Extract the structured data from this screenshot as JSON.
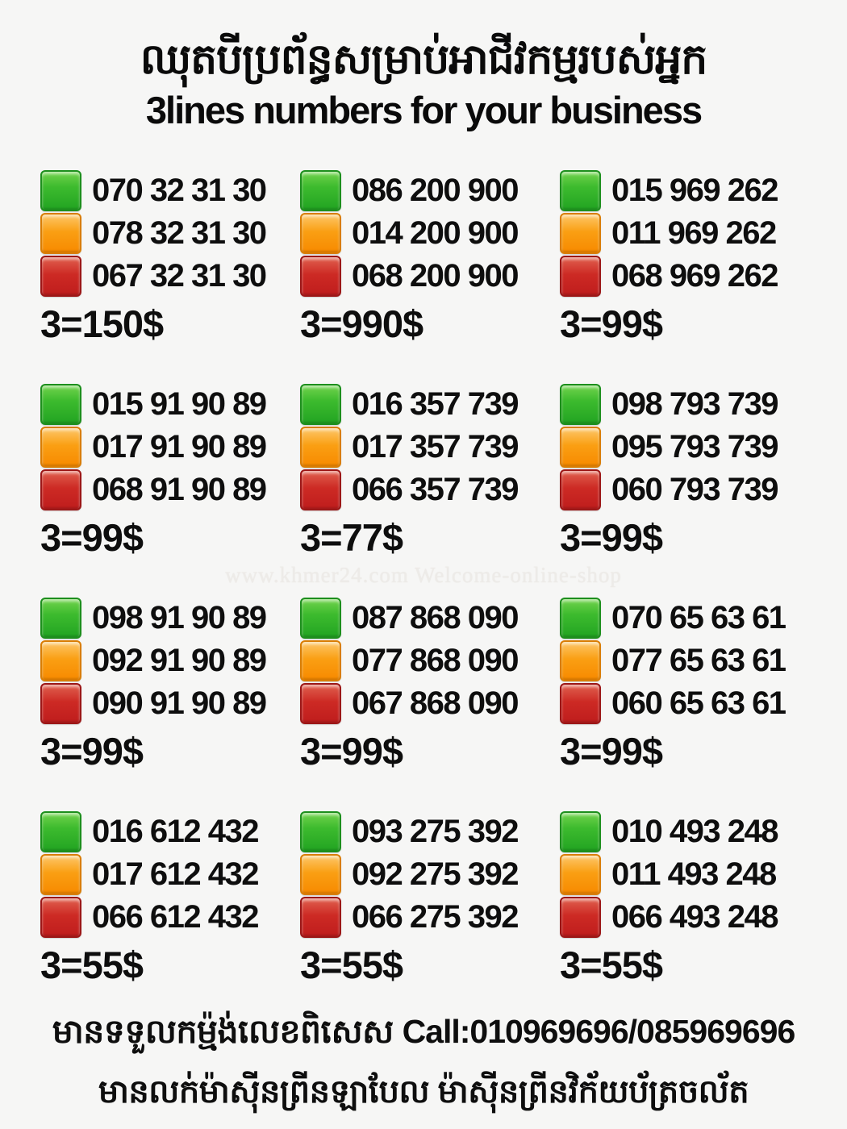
{
  "page": {
    "title_khmer": "ឈុតបីប្រព័ន្ធសម្រាប់អាជីវកម្មរបស់អ្នក",
    "title_english": "3lines numbers for your business",
    "watermark": "www.khmer24.com Welcome-online-shop",
    "footer_line1_khmer": "មានទទួលកម្ម៉ង់លេខពិសេស",
    "footer_line1_call": "Call:010969696/085969696",
    "footer_line2_khmer": "មានលក់ម៉ាស៊ីនព្រីនឡាបែល ម៉ាស៊ីនព្រីនវិក័យប័ត្រចល័ត"
  },
  "colors": {
    "green": "#2db92d",
    "orange": "#f89406",
    "red": "#c92020",
    "background": "#f6f6f5",
    "text": "#0e0e0e"
  },
  "packages": [
    {
      "price": "3=150$",
      "lines": [
        {
          "color": "green",
          "number": "070 32 31 30"
        },
        {
          "color": "orange",
          "number": "078 32 31 30"
        },
        {
          "color": "red",
          "number": "067 32 31 30"
        }
      ]
    },
    {
      "price": "3=990$",
      "lines": [
        {
          "color": "green",
          "number": "086 200 900"
        },
        {
          "color": "orange",
          "number": "014 200 900"
        },
        {
          "color": "red",
          "number": "068 200 900"
        }
      ]
    },
    {
      "price": "3=99$",
      "lines": [
        {
          "color": "green",
          "number": "015 969 262"
        },
        {
          "color": "orange",
          "number": "011 969 262"
        },
        {
          "color": "red",
          "number": "068 969 262"
        }
      ]
    },
    {
      "price": "3=99$",
      "lines": [
        {
          "color": "green",
          "number": "015 91 90 89"
        },
        {
          "color": "orange",
          "number": "017 91 90 89"
        },
        {
          "color": "red",
          "number": "068 91 90 89"
        }
      ]
    },
    {
      "price": "3=77$",
      "lines": [
        {
          "color": "green",
          "number": "016 357 739"
        },
        {
          "color": "orange",
          "number": "017 357 739"
        },
        {
          "color": "red",
          "number": "066 357 739"
        }
      ]
    },
    {
      "price": "3=99$",
      "lines": [
        {
          "color": "green",
          "number": "098 793 739"
        },
        {
          "color": "orange",
          "number": "095 793 739"
        },
        {
          "color": "red",
          "number": "060 793 739"
        }
      ]
    },
    {
      "price": "3=99$",
      "lines": [
        {
          "color": "green",
          "number": "098 91 90 89"
        },
        {
          "color": "orange",
          "number": "092 91 90 89"
        },
        {
          "color": "red",
          "number": "090 91 90 89"
        }
      ]
    },
    {
      "price": "3=99$",
      "lines": [
        {
          "color": "green",
          "number": "087 868 090"
        },
        {
          "color": "orange",
          "number": "077 868 090"
        },
        {
          "color": "red",
          "number": "067 868 090"
        }
      ]
    },
    {
      "price": "3=99$",
      "lines": [
        {
          "color": "green",
          "number": "070 65 63 61"
        },
        {
          "color": "orange",
          "number": "077 65 63 61"
        },
        {
          "color": "red",
          "number": "060 65 63 61"
        }
      ]
    },
    {
      "price": "3=55$",
      "lines": [
        {
          "color": "green",
          "number": "016 612 432"
        },
        {
          "color": "orange",
          "number": "017 612 432"
        },
        {
          "color": "red",
          "number": "066 612 432"
        }
      ]
    },
    {
      "price": "3=55$",
      "lines": [
        {
          "color": "green",
          "number": "093 275 392"
        },
        {
          "color": "orange",
          "number": "092 275 392"
        },
        {
          "color": "red",
          "number": "066 275 392"
        }
      ]
    },
    {
      "price": "3=55$",
      "lines": [
        {
          "color": "green",
          "number": "010 493 248"
        },
        {
          "color": "orange",
          "number": "011 493 248"
        },
        {
          "color": "red",
          "number": "066 493 248"
        }
      ]
    }
  ]
}
